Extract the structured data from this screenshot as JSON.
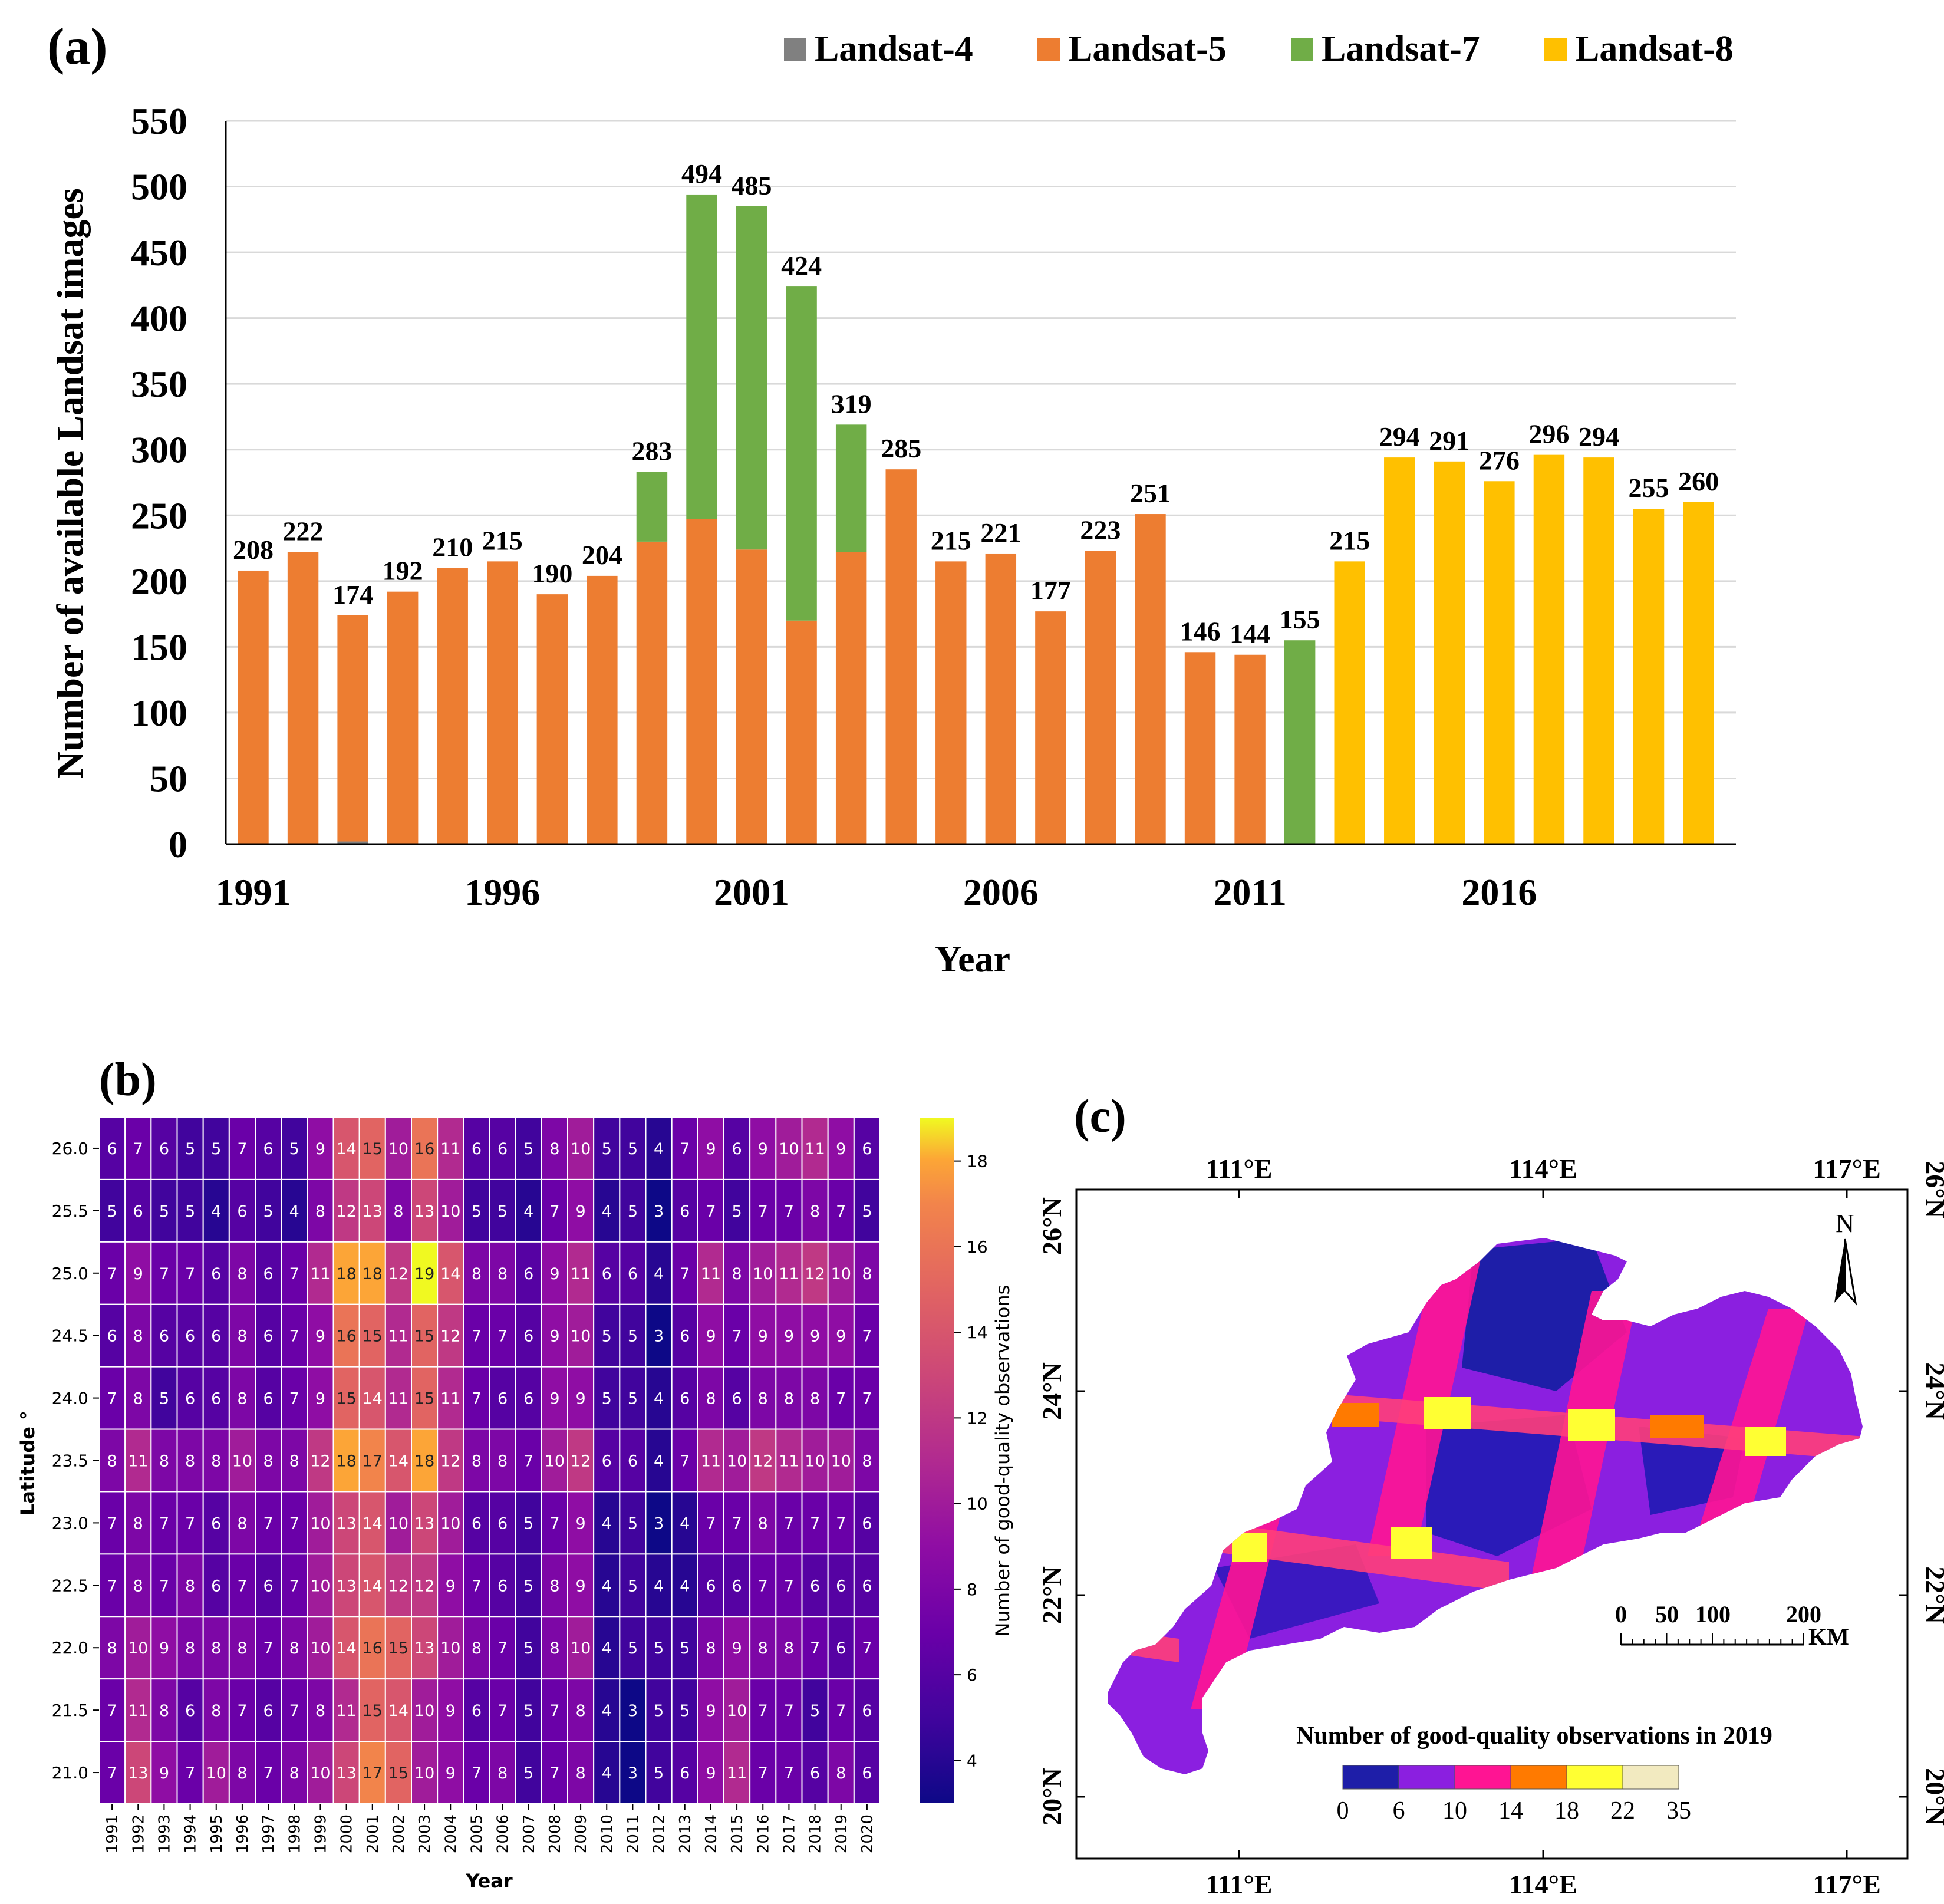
{
  "panel_a_letter": "(a)",
  "panel_b_letter": "(b)",
  "panel_c_letter": "(c)",
  "chart_data": [
    {
      "id": "a",
      "type": "bar",
      "title": "",
      "xlabel": "Year",
      "ylabel": "Number of available Landsat images",
      "ylim": [
        0,
        550
      ],
      "yticks": [
        0,
        50,
        100,
        150,
        200,
        250,
        300,
        350,
        400,
        450,
        500,
        550
      ],
      "xtick_labels": [
        "1991",
        "1996",
        "2001",
        "2006",
        "2011",
        "2016"
      ],
      "legend_position": "top-right",
      "categories": [
        "1991",
        "1992",
        "1993",
        "1994",
        "1995",
        "1996",
        "1997",
        "1998",
        "1999",
        "2000",
        "2001",
        "2002",
        "2003",
        "2004",
        "2005",
        "2006",
        "2007",
        "2008",
        "2009",
        "2010",
        "2011",
        "2012",
        "2013",
        "2014",
        "2015",
        "2016",
        "2017",
        "2018",
        "2019",
        "2020"
      ],
      "series": [
        {
          "name": "Landsat-4",
          "color": "#808080",
          "values": [
            0,
            0,
            2,
            0,
            0,
            0,
            0,
            0,
            0,
            0,
            0,
            0,
            0,
            0,
            0,
            0,
            0,
            0,
            0,
            0,
            0,
            0,
            0,
            0,
            0,
            0,
            0,
            0,
            0,
            0
          ]
        },
        {
          "name": "Landsat-5",
          "color": "#ED7D31",
          "values": [
            208,
            222,
            172,
            192,
            210,
            215,
            190,
            204,
            230,
            247,
            224,
            170,
            222,
            285,
            215,
            221,
            177,
            223,
            251,
            146,
            144,
            0,
            0,
            0,
            0,
            0,
            0,
            0,
            0,
            0
          ]
        },
        {
          "name": "Landsat-7",
          "color": "#70AD47",
          "values": [
            0,
            0,
            0,
            0,
            0,
            0,
            0,
            0,
            53,
            247,
            261,
            254,
            97,
            0,
            0,
            0,
            0,
            0,
            0,
            0,
            0,
            155,
            0,
            0,
            0,
            0,
            0,
            0,
            0,
            0
          ]
        },
        {
          "name": "Landsat-8",
          "color": "#FFC000",
          "values": [
            0,
            0,
            0,
            0,
            0,
            0,
            0,
            0,
            0,
            0,
            0,
            0,
            0,
            0,
            0,
            0,
            0,
            0,
            0,
            0,
            0,
            0,
            215,
            294,
            291,
            276,
            296,
            294,
            255,
            260
          ]
        }
      ],
      "totals": [
        208,
        222,
        174,
        192,
        210,
        215,
        190,
        204,
        283,
        494,
        485,
        424,
        319,
        285,
        215,
        221,
        177,
        223,
        251,
        146,
        144,
        155,
        215,
        294,
        291,
        276,
        296,
        294,
        255,
        260
      ]
    },
    {
      "id": "b",
      "type": "heatmap",
      "xlabel": "Year",
      "ylabel": "Latitude °",
      "colorbar_label": "Number of good-quality observations",
      "colorbar_ticks": [
        4,
        6,
        8,
        10,
        12,
        14,
        16,
        18
      ],
      "vmin": 3,
      "vmax": 19,
      "colormap": "plasma",
      "x": [
        "1991",
        "1992",
        "1993",
        "1994",
        "1995",
        "1996",
        "1997",
        "1998",
        "1999",
        "2000",
        "2001",
        "2002",
        "2003",
        "2004",
        "2005",
        "2006",
        "2007",
        "2008",
        "2009",
        "2010",
        "2011",
        "2012",
        "2013",
        "2014",
        "2015",
        "2016",
        "2017",
        "2018",
        "2019",
        "2020"
      ],
      "y": [
        "26.0",
        "25.5",
        "25.0",
        "24.5",
        "24.0",
        "23.5",
        "23.0",
        "22.5",
        "22.0",
        "21.5",
        "21.0"
      ],
      "values": [
        [
          6,
          7,
          6,
          5,
          5,
          7,
          6,
          5,
          9,
          14,
          15,
          10,
          16,
          11,
          6,
          6,
          5,
          8,
          10,
          5,
          5,
          4,
          7,
          9,
          6,
          9,
          10,
          11,
          9,
          6
        ],
        [
          5,
          6,
          5,
          5,
          4,
          6,
          5,
          4,
          8,
          12,
          13,
          8,
          13,
          10,
          5,
          5,
          4,
          7,
          9,
          4,
          5,
          3,
          6,
          7,
          5,
          7,
          7,
          8,
          7,
          5
        ],
        [
          7,
          9,
          7,
          7,
          6,
          8,
          6,
          7,
          11,
          18,
          18,
          12,
          19,
          14,
          8,
          8,
          6,
          9,
          11,
          6,
          6,
          4,
          7,
          11,
          8,
          10,
          11,
          12,
          10,
          8
        ],
        [
          6,
          8,
          6,
          6,
          6,
          8,
          6,
          7,
          9,
          16,
          15,
          11,
          15,
          12,
          7,
          7,
          6,
          9,
          10,
          5,
          5,
          3,
          6,
          9,
          7,
          9,
          9,
          9,
          9,
          7
        ],
        [
          7,
          8,
          5,
          6,
          6,
          8,
          6,
          7,
          9,
          15,
          14,
          11,
          15,
          11,
          7,
          6,
          6,
          9,
          9,
          5,
          5,
          4,
          6,
          8,
          6,
          8,
          8,
          8,
          7,
          7
        ],
        [
          8,
          11,
          8,
          8,
          8,
          10,
          8,
          8,
          12,
          18,
          17,
          14,
          18,
          12,
          8,
          8,
          7,
          10,
          12,
          6,
          6,
          4,
          7,
          11,
          10,
          12,
          11,
          10,
          10,
          8
        ],
        [
          7,
          8,
          7,
          7,
          6,
          8,
          7,
          7,
          10,
          13,
          14,
          10,
          13,
          10,
          6,
          6,
          5,
          7,
          9,
          4,
          5,
          3,
          4,
          7,
          7,
          8,
          7,
          7,
          7,
          6
        ],
        [
          7,
          8,
          7,
          8,
          6,
          7,
          6,
          7,
          10,
          13,
          14,
          12,
          12,
          9,
          7,
          6,
          5,
          8,
          9,
          4,
          5,
          4,
          4,
          6,
          6,
          7,
          7,
          6,
          6,
          6
        ],
        [
          8,
          10,
          9,
          8,
          8,
          8,
          7,
          8,
          10,
          14,
          16,
          15,
          13,
          10,
          8,
          7,
          5,
          8,
          10,
          4,
          5,
          5,
          5,
          8,
          9,
          8,
          8,
          7,
          6,
          7
        ],
        [
          7,
          11,
          8,
          6,
          8,
          7,
          6,
          7,
          8,
          11,
          15,
          14,
          10,
          9,
          6,
          7,
          5,
          7,
          8,
          4,
          3,
          5,
          5,
          9,
          10,
          7,
          7,
          5,
          7,
          6
        ],
        [
          7,
          13,
          9,
          7,
          10,
          8,
          7,
          8,
          10,
          13,
          17,
          15,
          10,
          9,
          7,
          8,
          5,
          7,
          8,
          4,
          3,
          5,
          6,
          9,
          11,
          7,
          7,
          6,
          8,
          6
        ]
      ]
    }
  ],
  "map": {
    "legend_title": "Number of good-quality observations in 2019",
    "legend_ticks": [
      "0",
      "6",
      "10",
      "14",
      "18",
      "22",
      "35"
    ],
    "legend_colors": [
      "#1E1EA8",
      "#8B1FE0",
      "#FF1493",
      "#FF7A00",
      "#FFFF33",
      "#F2EAC0"
    ],
    "lon_labels": [
      "111°E",
      "114°E",
      "117°E"
    ],
    "lat_labels": [
      "26°N",
      "24°N",
      "22°N",
      "20°N"
    ],
    "north_label": "N",
    "scale_labels": [
      "0",
      "50",
      "100",
      "200"
    ],
    "scale_unit": "KM"
  }
}
